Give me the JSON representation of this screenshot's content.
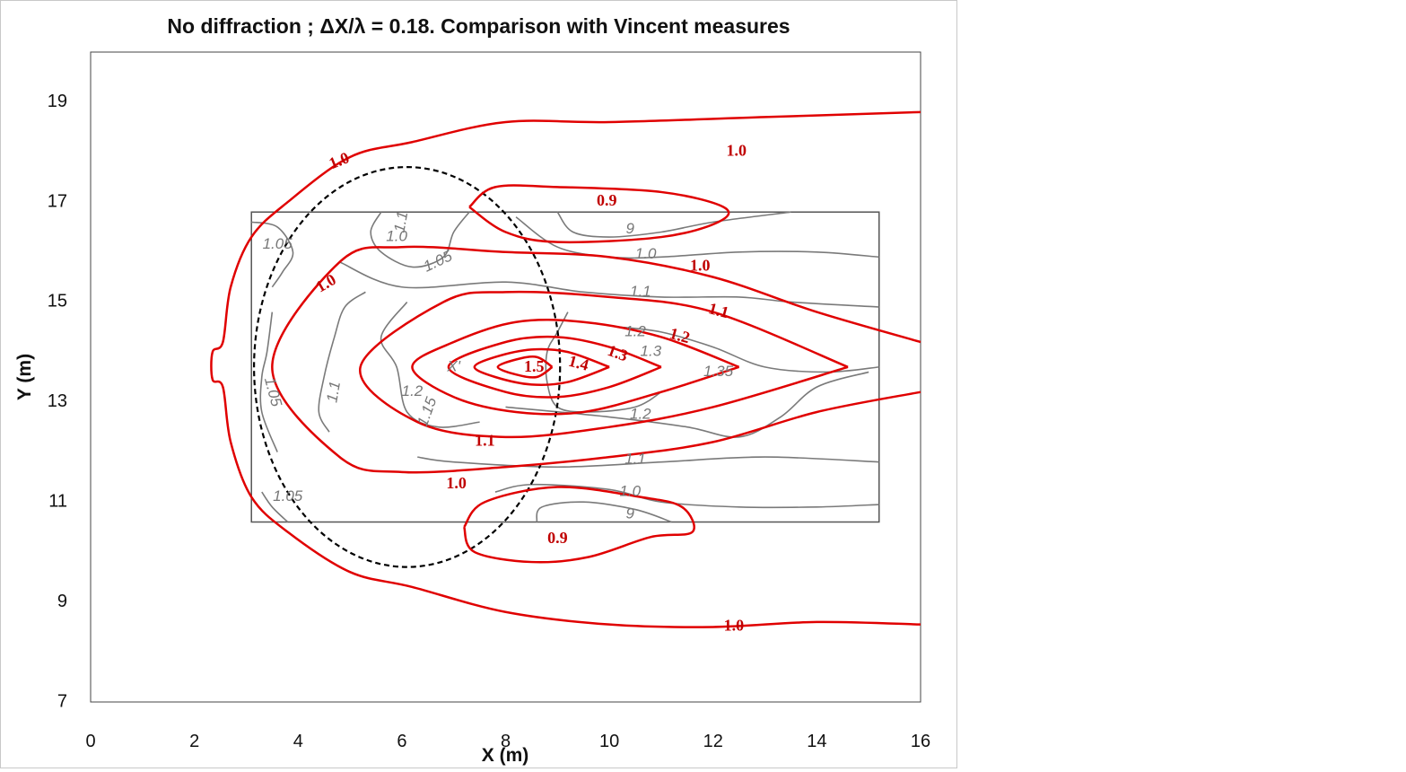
{
  "chart_data": {
    "type": "contour",
    "title": "No diffraction ; ΔX/λ = 0.18. Comparison with Vincent measures",
    "xlabel": "X (m)",
    "ylabel": "Y (m)",
    "xlim": [
      0,
      16
    ],
    "ylim": [
      7,
      20
    ],
    "x_ticks": [
      "0",
      "2",
      "4",
      "6",
      "8",
      "10",
      "12",
      "14",
      "16"
    ],
    "y_ticks": [
      "7",
      "9",
      "11",
      "13",
      "15",
      "17",
      "19"
    ],
    "colors": {
      "simulation": "#e00000",
      "simulation_label": "#c00000",
      "measured": "#7a7a7a",
      "shoal": "#000000",
      "frame": "#555555"
    },
    "measurement_region": {
      "x": [
        3.1,
        15.2
      ],
      "y": [
        10.6,
        16.8
      ]
    },
    "shoal_ellipse": {
      "center": [
        6.1,
        13.7
      ],
      "radius_x": 2.95,
      "radius_y": 4.0
    },
    "simulated_contours": [
      {
        "level": "1.0",
        "points": [
          [
            16,
            18.8
          ],
          [
            13,
            18.7
          ],
          [
            10,
            18.6
          ],
          [
            8,
            18.6
          ],
          [
            6.2,
            18.2
          ],
          [
            5,
            17.9
          ],
          [
            3.8,
            17.0
          ],
          [
            3.1,
            16.3
          ],
          [
            2.7,
            15.3
          ],
          [
            2.55,
            14.2
          ],
          [
            2.35,
            14.0
          ],
          [
            2.35,
            13.45
          ],
          [
            2.55,
            13.3
          ],
          [
            2.7,
            12.2
          ],
          [
            3.1,
            11.1
          ],
          [
            3.8,
            10.4
          ],
          [
            5.0,
            9.6
          ],
          [
            6.2,
            9.3
          ],
          [
            8,
            8.8
          ],
          [
            10,
            8.55
          ],
          [
            12,
            8.5
          ],
          [
            14,
            8.6
          ],
          [
            16,
            8.55
          ]
        ]
      },
      {
        "level": "0.9",
        "points": [
          [
            7.3,
            16.9
          ],
          [
            7.8,
            17.3
          ],
          [
            9,
            17.3
          ],
          [
            11,
            17.2
          ],
          [
            12.2,
            16.9
          ],
          [
            12.1,
            16.6
          ],
          [
            11,
            16.3
          ],
          [
            9,
            16.2
          ],
          [
            8,
            16.4
          ],
          [
            7.3,
            16.9
          ]
        ]
      },
      {
        "level": "0.9",
        "points": [
          [
            7.2,
            10.5
          ],
          [
            7.6,
            11.0
          ],
          [
            9.0,
            11.3
          ],
          [
            10.6,
            11.1
          ],
          [
            11.4,
            10.9
          ],
          [
            11.6,
            10.4
          ],
          [
            10.8,
            10.3
          ],
          [
            9.6,
            9.9
          ],
          [
            8.5,
            9.8
          ],
          [
            7.4,
            10.0
          ],
          [
            7.2,
            10.5
          ]
        ]
      },
      {
        "level": "1.0",
        "points": [
          [
            16,
            14.2
          ],
          [
            14,
            14.8
          ],
          [
            12,
            15.5
          ],
          [
            10,
            15.9
          ],
          [
            8,
            16.0
          ],
          [
            6,
            16.1
          ],
          [
            4.8,
            15.8
          ],
          [
            3.5,
            13.7
          ],
          [
            4.8,
            11.9
          ],
          [
            6,
            11.6
          ],
          [
            8,
            11.7
          ],
          [
            10,
            11.9
          ],
          [
            12,
            12.2
          ],
          [
            14,
            12.8
          ],
          [
            16,
            13.2
          ]
        ]
      },
      {
        "level": "1.1",
        "points": [
          [
            14.6,
            13.7
          ],
          [
            12,
            14.8
          ],
          [
            10,
            15.1
          ],
          [
            8,
            15.2
          ],
          [
            6.8,
            15.0
          ],
          [
            5.2,
            13.7
          ],
          [
            6.3,
            12.6
          ],
          [
            8,
            12.3
          ],
          [
            10,
            12.5
          ],
          [
            12,
            12.9
          ],
          [
            14.6,
            13.7
          ]
        ]
      },
      {
        "level": "1.2",
        "points": [
          [
            12.5,
            13.7
          ],
          [
            11,
            14.3
          ],
          [
            9.5,
            14.6
          ],
          [
            8.2,
            14.6
          ],
          [
            7.0,
            14.2
          ],
          [
            6.2,
            13.7
          ],
          [
            7.0,
            13.1
          ],
          [
            8.2,
            12.8
          ],
          [
            9.5,
            12.8
          ],
          [
            11,
            13.2
          ],
          [
            12.5,
            13.7
          ]
        ]
      },
      {
        "level": "1.3",
        "points": [
          [
            11.0,
            13.7
          ],
          [
            10,
            14.1
          ],
          [
            9,
            14.3
          ],
          [
            8,
            14.2
          ],
          [
            6.9,
            13.7
          ],
          [
            8,
            13.2
          ],
          [
            9,
            13.1
          ],
          [
            10,
            13.3
          ],
          [
            11.0,
            13.7
          ]
        ]
      },
      {
        "level": "1.4",
        "points": [
          [
            10.0,
            13.7
          ],
          [
            9.2,
            14.0
          ],
          [
            8.5,
            14.05
          ],
          [
            7.8,
            13.9
          ],
          [
            7.4,
            13.7
          ],
          [
            7.8,
            13.5
          ],
          [
            8.5,
            13.35
          ],
          [
            9.2,
            13.4
          ],
          [
            10.0,
            13.7
          ]
        ]
      },
      {
        "level": "1.5",
        "points": [
          [
            8.9,
            13.7
          ],
          [
            8.6,
            13.9
          ],
          [
            8.2,
            13.85
          ],
          [
            7.85,
            13.7
          ],
          [
            8.2,
            13.55
          ],
          [
            8.6,
            13.5
          ],
          [
            8.9,
            13.7
          ]
        ]
      }
    ],
    "simulated_labels": [
      {
        "text": "1.0",
        "x": 12.45,
        "y": 18.0,
        "angle": 0
      },
      {
        "text": "1.0",
        "x": 4.8,
        "y": 17.8,
        "angle": -22
      },
      {
        "text": "0.9",
        "x": 9.95,
        "y": 17.0,
        "angle": 0
      },
      {
        "text": "1.0",
        "x": 4.55,
        "y": 15.35,
        "angle": -30
      },
      {
        "text": "1.0",
        "x": 11.75,
        "y": 15.7,
        "angle": 0
      },
      {
        "text": "1.1",
        "x": 12.1,
        "y": 14.8,
        "angle": 15
      },
      {
        "text": "1.2",
        "x": 11.35,
        "y": 14.3,
        "angle": 15
      },
      {
        "text": "1.3",
        "x": 10.15,
        "y": 13.95,
        "angle": 20
      },
      {
        "text": "1.4",
        "x": 9.4,
        "y": 13.75,
        "angle": 15
      },
      {
        "text": "1.5",
        "x": 8.55,
        "y": 13.68,
        "angle": 0
      },
      {
        "text": "1.1",
        "x": 7.6,
        "y": 12.2,
        "angle": 0
      },
      {
        "text": "1.0",
        "x": 7.05,
        "y": 11.35,
        "angle": 0
      },
      {
        "text": "0.9",
        "x": 9.0,
        "y": 10.25,
        "angle": 0
      },
      {
        "text": "1.0",
        "x": 12.4,
        "y": 8.5,
        "angle": 0
      }
    ],
    "measured_contours": [
      {
        "points": [
          [
            3.1,
            16.6
          ],
          [
            3.6,
            16.5
          ],
          [
            3.9,
            16.0
          ],
          [
            3.7,
            15.6
          ],
          [
            3.5,
            15.3
          ]
        ]
      },
      {
        "points": [
          [
            5.6,
            16.8
          ],
          [
            5.4,
            16.4
          ],
          [
            5.6,
            16.0
          ],
          [
            6.2,
            15.7
          ],
          [
            6.8,
            15.9
          ],
          [
            7.0,
            16.4
          ],
          [
            7.3,
            16.8
          ]
        ]
      },
      {
        "points": [
          [
            9.0,
            16.8
          ],
          [
            9.3,
            16.4
          ],
          [
            10,
            16.3
          ],
          [
            11,
            16.4
          ],
          [
            12,
            16.6
          ],
          [
            13.5,
            16.8
          ]
        ]
      },
      {
        "points": [
          [
            8.2,
            16.7
          ],
          [
            9,
            16.1
          ],
          [
            10,
            15.9
          ],
          [
            11,
            15.9
          ],
          [
            12.5,
            16.0
          ],
          [
            14,
            16.0
          ],
          [
            15.2,
            15.9
          ]
        ]
      },
      {
        "points": [
          [
            4.8,
            15.8
          ],
          [
            6,
            15.3
          ],
          [
            8,
            15.4
          ],
          [
            9.5,
            15.2
          ],
          [
            11,
            15.1
          ],
          [
            12.5,
            15.1
          ],
          [
            13.5,
            15.0
          ],
          [
            15.2,
            14.9
          ]
        ]
      },
      {
        "points": [
          [
            6.1,
            15.0
          ],
          [
            5.6,
            14.3
          ],
          [
            5.9,
            13.7
          ],
          [
            6.1,
            12.8
          ],
          [
            6.7,
            12.5
          ],
          [
            7.5,
            12.6
          ]
        ]
      },
      {
        "points": [
          [
            9.2,
            14.8
          ],
          [
            9.0,
            14.4
          ],
          [
            8.8,
            14.0
          ],
          [
            8.8,
            13.4
          ],
          [
            9.0,
            12.9
          ],
          [
            9.6,
            12.8
          ],
          [
            10.5,
            12.9
          ],
          [
            11.0,
            13.2
          ]
        ]
      },
      {
        "points": [
          [
            10.2,
            14.5
          ],
          [
            11,
            14.4
          ],
          [
            12,
            14.1
          ],
          [
            13.0,
            13.7
          ],
          [
            14.2,
            13.6
          ],
          [
            15.2,
            13.7
          ]
        ]
      },
      {
        "points": [
          [
            4.6,
            12.4
          ],
          [
            4.4,
            12.8
          ],
          [
            4.5,
            13.5
          ],
          [
            4.7,
            14.3
          ],
          [
            4.9,
            14.9
          ],
          [
            5.3,
            15.2
          ]
        ]
      },
      {
        "points": [
          [
            3.5,
            14.8
          ],
          [
            3.4,
            14.0
          ],
          [
            3.3,
            13.5
          ],
          [
            3.3,
            12.8
          ],
          [
            3.6,
            12.0
          ]
        ]
      },
      {
        "points": [
          [
            6.3,
            11.9
          ],
          [
            7,
            11.8
          ],
          [
            9,
            11.7
          ],
          [
            11,
            11.8
          ],
          [
            13,
            11.9
          ],
          [
            15.2,
            11.8
          ]
        ]
      },
      {
        "points": [
          [
            8.0,
            12.9
          ],
          [
            10,
            12.7
          ],
          [
            11.5,
            12.5
          ],
          [
            12.5,
            12.3
          ],
          [
            13.3,
            12.7
          ],
          [
            14.0,
            13.3
          ],
          [
            15.0,
            13.6
          ]
        ]
      },
      {
        "points": [
          [
            7.8,
            11.2
          ],
          [
            8.5,
            11.35
          ],
          [
            10,
            11.25
          ],
          [
            11,
            11.0
          ],
          [
            12.5,
            10.9
          ],
          [
            14,
            10.9
          ],
          [
            15.2,
            10.95
          ]
        ]
      },
      {
        "points": [
          [
            8.6,
            10.6
          ],
          [
            8.7,
            10.9
          ],
          [
            9.5,
            11.0
          ],
          [
            10.5,
            10.85
          ],
          [
            11.2,
            10.6
          ]
        ]
      },
      {
        "points": [
          [
            3.3,
            11.2
          ],
          [
            3.5,
            10.9
          ],
          [
            3.8,
            10.6
          ]
        ]
      }
    ],
    "measured_labels": [
      {
        "text": "1.05",
        "x": 3.6,
        "y": 16.15,
        "angle": 0
      },
      {
        "text": "1.1",
        "x": 6.0,
        "y": 16.6,
        "angle": -80
      },
      {
        "text": "1.0",
        "x": 5.9,
        "y": 16.3,
        "angle": 0
      },
      {
        "text": "1.05",
        "x": 6.7,
        "y": 15.8,
        "angle": -25
      },
      {
        "text": "9",
        "x": 10.4,
        "y": 16.45,
        "angle": 0
      },
      {
        "text": "1.0",
        "x": 10.7,
        "y": 15.95,
        "angle": 0
      },
      {
        "text": "1.1",
        "x": 10.6,
        "y": 15.2,
        "angle": 0
      },
      {
        "text": "1.2",
        "x": 10.5,
        "y": 14.4,
        "angle": 0
      },
      {
        "text": "1.3",
        "x": 10.8,
        "y": 14.0,
        "angle": 0
      },
      {
        "text": "1.35",
        "x": 12.1,
        "y": 13.6,
        "angle": 0
      },
      {
        "text": "X'",
        "x": 7.0,
        "y": 13.7,
        "angle": 0
      },
      {
        "text": "1.2",
        "x": 6.2,
        "y": 13.2,
        "angle": 0
      },
      {
        "text": "1.15",
        "x": 6.5,
        "y": 12.8,
        "angle": -70
      },
      {
        "text": "1.1",
        "x": 4.7,
        "y": 13.2,
        "angle": -80
      },
      {
        "text": "1.05",
        "x": 3.5,
        "y": 13.2,
        "angle": 75
      },
      {
        "text": "1.2",
        "x": 10.6,
        "y": 12.75,
        "angle": 0
      },
      {
        "text": "1.1",
        "x": 10.5,
        "y": 11.85,
        "angle": 0
      },
      {
        "text": "1.0",
        "x": 10.4,
        "y": 11.2,
        "angle": 0
      },
      {
        "text": "9",
        "x": 10.4,
        "y": 10.75,
        "angle": 0
      },
      {
        "text": "1.05",
        "x": 3.8,
        "y": 11.1,
        "angle": 0
      }
    ]
  }
}
